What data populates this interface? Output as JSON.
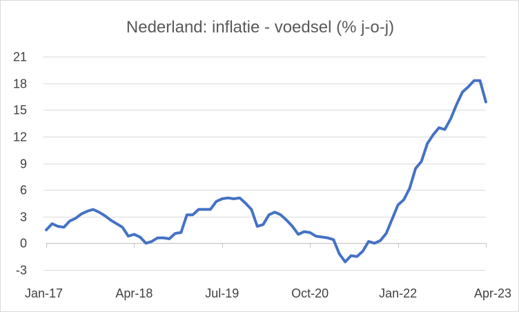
{
  "chart_data": {
    "type": "line",
    "title": "Nederland: inflatie - voedsel (% j-o-j)",
    "xlabel": "",
    "ylabel": "",
    "ylim": [
      -3,
      21
    ],
    "yticks": [
      -3,
      0,
      3,
      6,
      9,
      12,
      15,
      18,
      21
    ],
    "ytick_labels": [
      "-3",
      "0",
      "3",
      "6",
      "9",
      "12",
      "15",
      "18",
      "21"
    ],
    "x_tick_labels": [
      "Jan-17",
      "Apr-18",
      "Jul-19",
      "Oct-20",
      "Jan-22",
      "Apr-23"
    ],
    "x_tick_index": [
      0,
      15,
      30,
      45,
      60,
      75
    ],
    "grid": true,
    "legend": "none",
    "series": [
      {
        "color": "#4472c4",
        "x": [
          "Jan-17",
          "Feb-17",
          "Mar-17",
          "Apr-17",
          "May-17",
          "Jun-17",
          "Jul-17",
          "Aug-17",
          "Sep-17",
          "Oct-17",
          "Nov-17",
          "Dec-17",
          "Jan-18",
          "Feb-18",
          "Mar-18",
          "Apr-18",
          "May-18",
          "Jun-18",
          "Jul-18",
          "Aug-18",
          "Sep-18",
          "Oct-18",
          "Nov-18",
          "Dec-18",
          "Jan-19",
          "Feb-19",
          "Mar-19",
          "Apr-19",
          "May-19",
          "Jun-19",
          "Jul-19",
          "Aug-19",
          "Sep-19",
          "Oct-19",
          "Nov-19",
          "Dec-19",
          "Jan-20",
          "Feb-20",
          "Mar-20",
          "Apr-20",
          "May-20",
          "Jun-20",
          "Jul-20",
          "Aug-20",
          "Sep-20",
          "Oct-20",
          "Nov-20",
          "Dec-20",
          "Jan-21",
          "Feb-21",
          "Mar-21",
          "Apr-21",
          "May-21",
          "Jun-21",
          "Jul-21",
          "Aug-21",
          "Sep-21",
          "Oct-21",
          "Nov-21",
          "Dec-21",
          "Jan-22",
          "Feb-22",
          "Mar-22",
          "Apr-22",
          "May-22",
          "Jun-22",
          "Jul-22",
          "Aug-22",
          "Sep-22",
          "Oct-22",
          "Nov-22",
          "Dec-22",
          "Jan-23",
          "Feb-23",
          "Mar-23",
          "Apr-23"
        ],
        "values": [
          1.5,
          2.2,
          1.9,
          1.8,
          2.5,
          2.8,
          3.3,
          3.6,
          3.8,
          3.5,
          3.1,
          2.6,
          2.2,
          1.8,
          0.8,
          1.0,
          0.7,
          0.0,
          0.2,
          0.6,
          0.6,
          0.5,
          1.1,
          1.2,
          3.2,
          3.2,
          3.8,
          3.8,
          3.8,
          4.7,
          5.0,
          5.1,
          5.0,
          5.1,
          4.5,
          3.8,
          1.9,
          2.1,
          3.2,
          3.5,
          3.2,
          2.6,
          1.9,
          1.0,
          1.3,
          1.2,
          0.8,
          0.7,
          0.6,
          0.4,
          -1.2,
          -2.1,
          -1.4,
          -1.5,
          -0.9,
          0.2,
          0.0,
          0.3,
          1.1,
          2.7,
          4.3,
          4.9,
          6.2,
          8.4,
          9.2,
          11.2,
          12.2,
          13.0,
          12.8,
          14.0,
          15.6,
          17.0,
          17.6,
          18.3,
          18.3,
          15.9
        ]
      }
    ]
  }
}
